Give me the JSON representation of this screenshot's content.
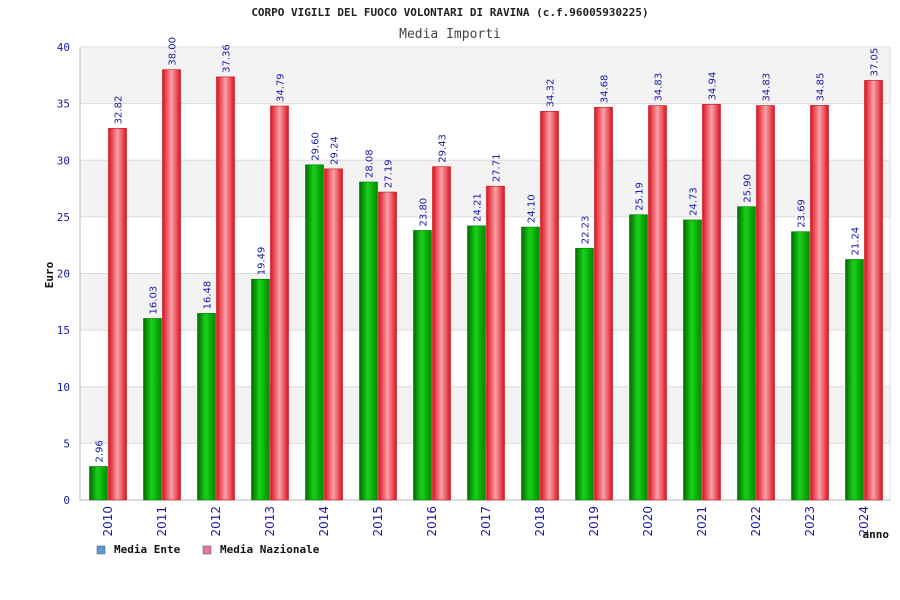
{
  "chart_data": {
    "type": "bar",
    "title": "CORPO VIGILI DEL FUOCO VOLONTARI DI RAVINA (c.f.96005930225)",
    "subtitle": "Media Importi",
    "xlabel": "anno",
    "ylabel": "Euro",
    "ylim": [
      0,
      40
    ],
    "yticks": [
      0,
      5,
      10,
      15,
      20,
      25,
      30,
      35,
      40
    ],
    "grid": true,
    "legend_position": "bottom-left",
    "categories": [
      "2010",
      "2011",
      "2012",
      "2013",
      "2014",
      "2015",
      "2016",
      "2017",
      "2018",
      "2019",
      "2020",
      "2021",
      "2022",
      "2023",
      "2024"
    ],
    "series": [
      {
        "name": "Media Ente",
        "color": "#00a000",
        "legend_color": "#5b9bd5",
        "values": [
          2.96,
          16.03,
          16.48,
          19.49,
          29.6,
          28.08,
          23.8,
          24.21,
          24.1,
          22.23,
          25.19,
          24.73,
          25.9,
          23.69,
          21.24
        ],
        "labels": [
          "2.96",
          "16.03",
          "16.48",
          "19.49",
          "29.60",
          "28.08",
          "23.80",
          "24.21",
          "24.10",
          "22.23",
          "25.19",
          "24.73",
          "25.90",
          "23.69",
          "21.24"
        ]
      },
      {
        "name": "Media Nazionale",
        "color": "#e8202a",
        "legend_color": "#e377a8",
        "values": [
          32.82,
          38.0,
          37.36,
          34.79,
          29.24,
          27.19,
          29.43,
          27.71,
          34.32,
          34.68,
          34.83,
          34.94,
          34.83,
          34.85,
          37.05
        ],
        "labels": [
          "32.82",
          "38.00",
          "37.36",
          "34.79",
          "29.24",
          "27.19",
          "29.43",
          "27.71",
          "34.32",
          "34.68",
          "34.83",
          "34.94",
          "34.83",
          "34.85",
          "37.05"
        ]
      }
    ]
  }
}
